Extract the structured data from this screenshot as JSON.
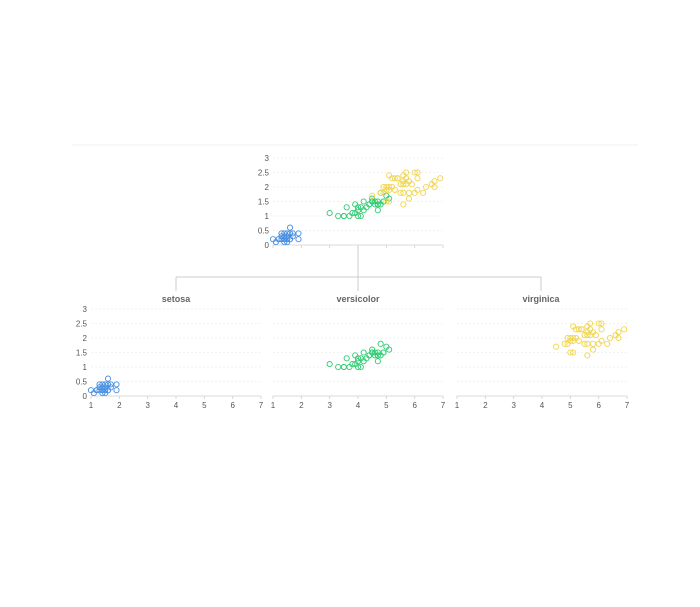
{
  "chart_data": [
    {
      "type": "scatter",
      "title": "",
      "xlabel": "",
      "ylabel": "",
      "xlim": [
        1,
        7
      ],
      "ylim": [
        0,
        3
      ],
      "x_ticks": [
        "1",
        "2",
        "3",
        "4",
        "5",
        "6",
        "7"
      ],
      "y_ticks": [
        "0",
        "0.5",
        "1",
        "1.5",
        "2",
        "2.5",
        "3"
      ],
      "show_x_tick_labels": false,
      "grid": true,
      "series": [
        {
          "color": "#4a90e2",
          "points": [
            [
              1.4,
              0.2
            ],
            [
              1.3,
              0.2
            ],
            [
              1.5,
              0.2
            ],
            [
              1.4,
              0.3
            ],
            [
              1.7,
              0.4
            ],
            [
              1.5,
              0.1
            ],
            [
              1.6,
              0.2
            ],
            [
              1.4,
              0.1
            ],
            [
              1.1,
              0.1
            ],
            [
              1.2,
              0.2
            ],
            [
              1.3,
              0.4
            ],
            [
              1.7,
              0.3
            ],
            [
              1.5,
              0.3
            ],
            [
              1.0,
              0.2
            ],
            [
              1.9,
              0.2
            ],
            [
              1.6,
              0.4
            ],
            [
              1.5,
              0.4
            ],
            [
              1.4,
              0.4
            ],
            [
              1.6,
              0.6
            ],
            [
              1.9,
              0.4
            ],
            [
              1.2,
              0.2
            ],
            [
              1.3,
              0.3
            ],
            [
              1.5,
              0.2
            ],
            [
              1.6,
              0.2
            ],
            [
              1.4,
              0.2
            ]
          ]
        },
        {
          "color": "#2ecc71",
          "points": [
            [
              4.7,
              1.4
            ],
            [
              4.5,
              1.5
            ],
            [
              4.9,
              1.5
            ],
            [
              4.0,
              1.3
            ],
            [
              4.6,
              1.5
            ],
            [
              3.3,
              1.0
            ],
            [
              3.9,
              1.4
            ],
            [
              3.5,
              1.0
            ],
            [
              4.2,
              1.5
            ],
            [
              4.0,
              1.0
            ],
            [
              4.7,
              1.4
            ],
            [
              3.6,
              1.3
            ],
            [
              4.4,
              1.4
            ],
            [
              4.1,
              1.0
            ],
            [
              4.5,
              1.5
            ],
            [
              3.9,
              1.1
            ],
            [
              4.8,
              1.8
            ],
            [
              4.9,
              1.5
            ],
            [
              4.7,
              1.2
            ],
            [
              4.3,
              1.3
            ],
            [
              4.4,
              1.4
            ],
            [
              4.8,
              1.4
            ],
            [
              5.0,
              1.7
            ],
            [
              3.8,
              1.1
            ],
            [
              3.7,
              1.0
            ],
            [
              5.1,
              1.6
            ],
            [
              4.5,
              1.6
            ],
            [
              4.7,
              1.5
            ],
            [
              4.1,
              1.3
            ],
            [
              3.0,
              1.1
            ],
            [
              4.2,
              1.2
            ],
            [
              4.6,
              1.4
            ],
            [
              4.0,
              1.2
            ],
            [
              3.5,
              1.0
            ]
          ]
        },
        {
          "color": "#f1d54b",
          "points": [
            [
              6.0,
              2.5
            ],
            [
              5.1,
              1.9
            ],
            [
              5.9,
              2.1
            ],
            [
              5.6,
              1.8
            ],
            [
              5.8,
              2.2
            ],
            [
              6.6,
              2.1
            ],
            [
              4.5,
              1.7
            ],
            [
              6.3,
              1.8
            ],
            [
              5.8,
              1.8
            ],
            [
              6.1,
              2.5
            ],
            [
              5.1,
              2.0
            ],
            [
              5.3,
              1.9
            ],
            [
              5.5,
              2.1
            ],
            [
              5.0,
              2.0
            ],
            [
              5.1,
              2.4
            ],
            [
              5.3,
              2.3
            ],
            [
              5.5,
              1.8
            ],
            [
              6.7,
              2.2
            ],
            [
              6.9,
              2.3
            ],
            [
              5.0,
              1.5
            ],
            [
              5.7,
              2.3
            ],
            [
              4.9,
              2.0
            ],
            [
              6.7,
              2.0
            ],
            [
              4.9,
              1.8
            ],
            [
              5.7,
              2.1
            ],
            [
              6.0,
              1.8
            ],
            [
              4.8,
              1.8
            ],
            [
              5.6,
              2.1
            ],
            [
              5.8,
              1.6
            ],
            [
              6.1,
              1.9
            ],
            [
              6.4,
              2.0
            ],
            [
              5.6,
              2.2
            ],
            [
              5.1,
              1.5
            ],
            [
              5.6,
              1.4
            ],
            [
              6.1,
              2.3
            ],
            [
              5.6,
              2.4
            ],
            [
              5.4,
              2.3
            ],
            [
              5.2,
              2.0
            ],
            [
              5.0,
              1.9
            ],
            [
              5.4,
              2.3
            ],
            [
              5.7,
              2.5
            ],
            [
              5.2,
              2.3
            ]
          ]
        }
      ]
    },
    {
      "type": "scatter",
      "title": "setosa",
      "xlabel": "",
      "ylabel": "",
      "xlim": [
        1,
        7
      ],
      "ylim": [
        0,
        3
      ],
      "x_ticks": [
        "1",
        "2",
        "3",
        "4",
        "5",
        "6",
        "7"
      ],
      "y_ticks": [
        "0",
        "0.5",
        "1",
        "1.5",
        "2",
        "2.5",
        "3"
      ],
      "show_x_tick_labels": true,
      "grid": true,
      "series": [
        {
          "color": "#4a90e2",
          "points": [
            [
              1.4,
              0.2
            ],
            [
              1.3,
              0.2
            ],
            [
              1.5,
              0.2
            ],
            [
              1.4,
              0.3
            ],
            [
              1.7,
              0.4
            ],
            [
              1.5,
              0.1
            ],
            [
              1.6,
              0.2
            ],
            [
              1.4,
              0.1
            ],
            [
              1.1,
              0.1
            ],
            [
              1.2,
              0.2
            ],
            [
              1.3,
              0.4
            ],
            [
              1.7,
              0.3
            ],
            [
              1.5,
              0.3
            ],
            [
              1.0,
              0.2
            ],
            [
              1.9,
              0.2
            ],
            [
              1.6,
              0.4
            ],
            [
              1.5,
              0.4
            ],
            [
              1.4,
              0.4
            ],
            [
              1.6,
              0.6
            ],
            [
              1.9,
              0.4
            ],
            [
              1.2,
              0.2
            ],
            [
              1.3,
              0.3
            ],
            [
              1.5,
              0.2
            ],
            [
              1.6,
              0.2
            ],
            [
              1.4,
              0.2
            ]
          ]
        }
      ]
    },
    {
      "type": "scatter",
      "title": "versicolor",
      "xlabel": "",
      "ylabel": "",
      "xlim": [
        1,
        7
      ],
      "ylim": [
        0,
        3
      ],
      "x_ticks": [
        "1",
        "2",
        "3",
        "4",
        "5",
        "6",
        "7"
      ],
      "y_ticks": [],
      "show_x_tick_labels": true,
      "grid": true,
      "series": [
        {
          "color": "#2ecc71",
          "points": [
            [
              4.7,
              1.4
            ],
            [
              4.5,
              1.5
            ],
            [
              4.9,
              1.5
            ],
            [
              4.0,
              1.3
            ],
            [
              4.6,
              1.5
            ],
            [
              3.3,
              1.0
            ],
            [
              3.9,
              1.4
            ],
            [
              3.5,
              1.0
            ],
            [
              4.2,
              1.5
            ],
            [
              4.0,
              1.0
            ],
            [
              4.7,
              1.4
            ],
            [
              3.6,
              1.3
            ],
            [
              4.4,
              1.4
            ],
            [
              4.1,
              1.0
            ],
            [
              4.5,
              1.5
            ],
            [
              3.9,
              1.1
            ],
            [
              4.8,
              1.8
            ],
            [
              4.9,
              1.5
            ],
            [
              4.7,
              1.2
            ],
            [
              4.3,
              1.3
            ],
            [
              4.4,
              1.4
            ],
            [
              4.8,
              1.4
            ],
            [
              5.0,
              1.7
            ],
            [
              3.8,
              1.1
            ],
            [
              3.7,
              1.0
            ],
            [
              5.1,
              1.6
            ],
            [
              4.5,
              1.6
            ],
            [
              4.7,
              1.5
            ],
            [
              4.1,
              1.3
            ],
            [
              3.0,
              1.1
            ],
            [
              4.2,
              1.2
            ],
            [
              4.6,
              1.4
            ],
            [
              4.0,
              1.2
            ],
            [
              3.5,
              1.0
            ]
          ]
        }
      ]
    },
    {
      "type": "scatter",
      "title": "virginica",
      "xlabel": "",
      "ylabel": "",
      "xlim": [
        1,
        7
      ],
      "ylim": [
        0,
        3
      ],
      "x_ticks": [
        "1",
        "2",
        "3",
        "4",
        "5",
        "6",
        "7"
      ],
      "y_ticks": [],
      "show_x_tick_labels": true,
      "grid": true,
      "series": [
        {
          "color": "#f1d54b",
          "points": [
            [
              6.0,
              2.5
            ],
            [
              5.1,
              1.9
            ],
            [
              5.9,
              2.1
            ],
            [
              5.6,
              1.8
            ],
            [
              5.8,
              2.2
            ],
            [
              6.6,
              2.1
            ],
            [
              4.5,
              1.7
            ],
            [
              6.3,
              1.8
            ],
            [
              5.8,
              1.8
            ],
            [
              6.1,
              2.5
            ],
            [
              5.1,
              2.0
            ],
            [
              5.3,
              1.9
            ],
            [
              5.5,
              2.1
            ],
            [
              5.0,
              2.0
            ],
            [
              5.1,
              2.4
            ],
            [
              5.3,
              2.3
            ],
            [
              5.5,
              1.8
            ],
            [
              6.7,
              2.2
            ],
            [
              6.9,
              2.3
            ],
            [
              5.0,
              1.5
            ],
            [
              5.7,
              2.3
            ],
            [
              4.9,
              2.0
            ],
            [
              6.7,
              2.0
            ],
            [
              4.9,
              1.8
            ],
            [
              5.7,
              2.1
            ],
            [
              6.0,
              1.8
            ],
            [
              4.8,
              1.8
            ],
            [
              5.6,
              2.1
            ],
            [
              5.8,
              1.6
            ],
            [
              6.1,
              1.9
            ],
            [
              6.4,
              2.0
            ],
            [
              5.6,
              2.2
            ],
            [
              5.1,
              1.5
            ],
            [
              5.6,
              1.4
            ],
            [
              6.1,
              2.3
            ],
            [
              5.6,
              2.4
            ],
            [
              5.4,
              2.3
            ],
            [
              5.2,
              2.0
            ],
            [
              5.0,
              1.9
            ],
            [
              5.4,
              2.3
            ],
            [
              5.7,
              2.5
            ],
            [
              5.2,
              2.3
            ]
          ]
        }
      ]
    }
  ]
}
